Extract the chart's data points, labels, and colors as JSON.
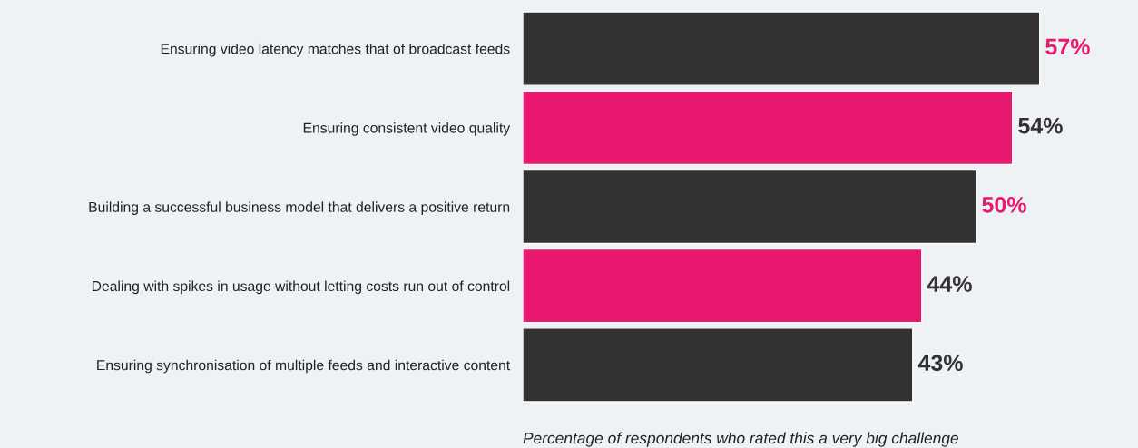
{
  "chart_data": {
    "type": "bar",
    "orientation": "horizontal",
    "categories": [
      "Ensuring video latency matches that of broadcast feeds",
      "Ensuring consistent video quality",
      "Building a successful business model that delivers a positive return",
      "Dealing with spikes in usage without letting costs run out of control",
      "Ensuring synchronisation of multiple feeds and interactive content"
    ],
    "values": [
      57,
      54,
      50,
      44,
      43
    ],
    "colors": [
      "#333132",
      "#e8196e",
      "#333132",
      "#e8196e",
      "#333132"
    ],
    "value_labels": [
      "57%",
      "54%",
      "50%",
      "44%",
      "43%"
    ],
    "xlabel": "Percentage of respondents who rated this a very big challenge"
  }
}
